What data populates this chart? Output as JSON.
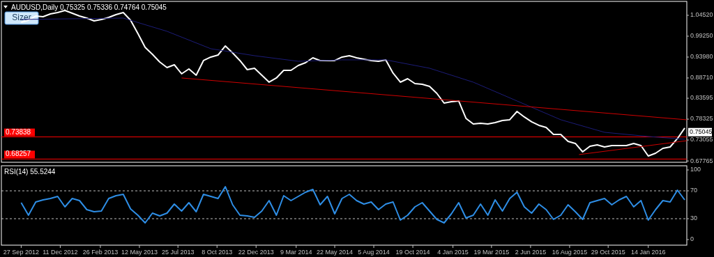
{
  "chart_data": [
    {
      "type": "line",
      "title": "AUDUSD,Daily 0.75325 0.75336 0.74764 0.75045",
      "annotations": [
        "Sizer",
        {
          "text": "0.75045",
          "y": 0.75045
        }
      ],
      "xlim": [
        "2012-08-20",
        "2016-03-28"
      ],
      "ylim": [
        0.6744,
        1.0803
      ],
      "yticks": [
        {
          "value": 1.0452,
          "label": "1.04520"
        },
        {
          "value": 0.9925,
          "label": "0.99250"
        },
        {
          "value": 0.9398,
          "label": "0.93980"
        },
        {
          "value": 0.8871,
          "label": "0.88710"
        },
        {
          "value": 0.83595,
          "label": "0.83595"
        },
        {
          "value": 0.78325,
          "label": "0.78325"
        },
        {
          "value": 0.73055,
          "label": "0.73055"
        },
        {
          "value": 0.67765,
          "label": "0.67765"
        }
      ],
      "tick_labels": "y",
      "grid": false,
      "marker": "none",
      "line_style": "solid",
      "x": [
        "2012-09-27",
        "2012-10-11",
        "2012-10-25",
        "2012-11-08",
        "2012-11-22",
        "2012-12-06",
        "2012-12-20",
        "2013-01-03",
        "2013-01-17",
        "2013-01-31",
        "2013-02-14",
        "2013-02-28",
        "2013-03-14",
        "2013-03-28",
        "2013-04-11",
        "2013-04-25",
        "2013-05-09",
        "2013-05-23",
        "2013-06-06",
        "2013-06-20",
        "2013-07-04",
        "2013-07-18",
        "2013-08-01",
        "2013-08-15",
        "2013-08-29",
        "2013-09-12",
        "2013-09-26",
        "2013-10-10",
        "2013-10-24",
        "2013-11-07",
        "2013-11-21",
        "2013-12-05",
        "2013-12-19",
        "2014-01-02",
        "2014-01-16",
        "2014-01-30",
        "2014-02-13",
        "2014-02-27",
        "2014-03-13",
        "2014-03-27",
        "2014-04-10",
        "2014-04-24",
        "2014-05-08",
        "2014-05-22",
        "2014-06-05",
        "2014-06-19",
        "2014-07-03",
        "2014-07-17",
        "2014-07-31",
        "2014-08-14",
        "2014-08-28",
        "2014-09-11",
        "2014-09-25",
        "2014-10-09",
        "2014-10-23",
        "2014-11-06",
        "2014-11-20",
        "2014-12-04",
        "2014-12-18",
        "2015-01-01",
        "2015-01-15",
        "2015-01-29",
        "2015-02-12",
        "2015-02-26",
        "2015-03-12",
        "2015-03-26",
        "2015-04-09",
        "2015-04-23",
        "2015-05-07",
        "2015-05-21",
        "2015-06-04",
        "2015-06-18",
        "2015-07-02",
        "2015-07-16",
        "2015-07-30",
        "2015-08-13",
        "2015-08-27",
        "2015-09-10",
        "2015-09-24",
        "2015-10-08",
        "2015-10-22",
        "2015-11-05",
        "2015-11-19",
        "2015-12-03",
        "2015-12-17",
        "2015-12-31",
        "2016-01-14",
        "2016-01-28",
        "2016-02-11",
        "2016-02-25",
        "2016-03-10",
        "2016-03-24"
      ],
      "series": [
        {
          "color": "#ffffff",
          "values": [
            1.0276,
            1.0329,
            1.0434,
            1.0417,
            1.0487,
            1.0522,
            1.0575,
            1.0505,
            1.0434,
            1.0382,
            1.0311,
            1.0347,
            1.0399,
            1.047,
            1.0522,
            1.0329,
            0.9995,
            0.9644,
            0.9468,
            0.9275,
            0.9134,
            0.9204,
            0.8976,
            0.9099,
            0.8941,
            0.931,
            0.9398,
            0.945,
            0.9679,
            0.9503,
            0.931,
            0.9081,
            0.9117,
            0.8941,
            0.8765,
            0.8871,
            0.9064,
            0.9064,
            0.9187,
            0.9257,
            0.938,
            0.931,
            0.931,
            0.931,
            0.9398,
            0.9433,
            0.938,
            0.9345,
            0.931,
            0.9292,
            0.9328,
            0.8994,
            0.8765,
            0.8853,
            0.873,
            0.8713,
            0.866,
            0.8484,
            0.8238,
            0.8273,
            0.8291,
            0.7852,
            0.7711,
            0.7729,
            0.7711,
            0.7746,
            0.7799,
            0.7817,
            0.8027,
            0.7887,
            0.7764,
            0.7676,
            0.7623,
            0.7448,
            0.7448,
            0.7272,
            0.7219,
            0.7008,
            0.7149,
            0.7184,
            0.7131,
            0.7166,
            0.7166,
            0.7166,
            0.7219,
            0.7166,
            0.6903,
            0.6973,
            0.7096,
            0.7131,
            0.7342,
            0.7606
          ]
        },
        {
          "color": "#1c1c78",
          "x": [
            "2012-09-27",
            "2013-04-11",
            "2013-07-04",
            "2013-09-26",
            "2013-12-19",
            "2014-03-13",
            "2014-06-05",
            "2014-08-28",
            "2014-11-20",
            "2015-02-12",
            "2015-05-07",
            "2015-07-30",
            "2015-10-22",
            "2016-01-14",
            "2016-03-24"
          ],
          "values": [
            1.0347,
            1.0382,
            1.0048,
            0.9609,
            0.9433,
            0.9292,
            0.9328,
            0.9328,
            0.9117,
            0.8765,
            0.8291,
            0.7817,
            0.75,
            0.7395,
            0.7325
          ]
        },
        {
          "color": "#d00000",
          "x": [
            "2013-08-01",
            "2016-03-28"
          ],
          "values": [
            0.8871,
            0.7816
          ]
        },
        {
          "color": "#d00000",
          "x": [
            "2015-09-03",
            "2016-03-28"
          ],
          "values": [
            0.6938,
            0.7289
          ]
        }
      ],
      "ref_lines": [
        {
          "axis": "y",
          "value": 0.73838,
          "label": "0.73838",
          "color": "#ff0000"
        },
        {
          "axis": "y",
          "value": 0.68257,
          "label": "0.68257",
          "color": "#ff0000"
        }
      ]
    },
    {
      "type": "line",
      "title": "RSI(14) 55.5244",
      "xlim": [
        "2012-08-20",
        "2016-03-28"
      ],
      "xticks": [
        {
          "value": "2012-09-27",
          "label": "27 Sep 2012"
        },
        {
          "value": "2012-12-11",
          "label": "11 Dec 2012"
        },
        {
          "value": "2013-02-26",
          "label": "26 Feb 2013"
        },
        {
          "value": "2013-05-12",
          "label": "12 May 2013"
        },
        {
          "value": "2013-07-25",
          "label": "25 Jul 2013"
        },
        {
          "value": "2013-10-08",
          "label": "8 Oct 2013"
        },
        {
          "value": "2013-12-22",
          "label": "22 Dec 2013"
        },
        {
          "value": "2014-03-09",
          "label": "9 Mar 2014"
        },
        {
          "value": "2014-05-22",
          "label": "22 May 2014"
        },
        {
          "value": "2014-08-05",
          "label": "5 Aug 2014"
        },
        {
          "value": "2014-10-19",
          "label": "19 Oct 2014"
        },
        {
          "value": "2015-01-04",
          "label": "4 Jan 2015"
        },
        {
          "value": "2015-03-19",
          "label": "19 Mar 2015"
        },
        {
          "value": "2015-06-02",
          "label": "2 Jun 2015"
        },
        {
          "value": "2015-08-16",
          "label": "16 Aug 2015"
        },
        {
          "value": "2015-10-29",
          "label": "29 Oct 2015"
        },
        {
          "value": "2016-01-14",
          "label": "14 Jan 2016"
        }
      ],
      "ylim": [
        -8,
        106
      ],
      "yticks": [
        0,
        30,
        70,
        100
      ],
      "grid": false,
      "marker": "none",
      "line_style": "solid",
      "x": [
        "2012-09-27",
        "2012-10-11",
        "2012-10-25",
        "2012-11-08",
        "2012-11-22",
        "2012-12-06",
        "2012-12-20",
        "2013-01-03",
        "2013-01-17",
        "2013-01-31",
        "2013-02-14",
        "2013-02-28",
        "2013-03-14",
        "2013-03-28",
        "2013-04-11",
        "2013-04-25",
        "2013-05-09",
        "2013-05-23",
        "2013-06-06",
        "2013-06-20",
        "2013-07-04",
        "2013-07-18",
        "2013-08-01",
        "2013-08-15",
        "2013-08-29",
        "2013-09-12",
        "2013-09-26",
        "2013-10-10",
        "2013-10-24",
        "2013-11-07",
        "2013-11-21",
        "2013-12-05",
        "2013-12-19",
        "2014-01-02",
        "2014-01-16",
        "2014-01-30",
        "2014-02-13",
        "2014-02-27",
        "2014-03-13",
        "2014-03-27",
        "2014-04-10",
        "2014-04-24",
        "2014-05-08",
        "2014-05-22",
        "2014-06-05",
        "2014-06-19",
        "2014-07-03",
        "2014-07-17",
        "2014-07-31",
        "2014-08-14",
        "2014-08-28",
        "2014-09-11",
        "2014-09-25",
        "2014-10-09",
        "2014-10-23",
        "2014-11-06",
        "2014-11-20",
        "2014-12-04",
        "2014-12-18",
        "2015-01-01",
        "2015-01-15",
        "2015-01-29",
        "2015-02-12",
        "2015-02-26",
        "2015-03-12",
        "2015-03-26",
        "2015-04-09",
        "2015-04-23",
        "2015-05-07",
        "2015-05-21",
        "2015-06-04",
        "2015-06-18",
        "2015-07-02",
        "2015-07-16",
        "2015-07-30",
        "2015-08-13",
        "2015-08-27",
        "2015-09-10",
        "2015-09-24",
        "2015-10-08",
        "2015-10-22",
        "2015-11-05",
        "2015-11-19",
        "2015-12-03",
        "2015-12-17",
        "2015-12-31",
        "2016-01-14",
        "2016-01-28",
        "2016-02-11",
        "2016-02-25",
        "2016-03-10",
        "2016-03-24"
      ],
      "series": [
        {
          "color": "#2e8ee6",
          "values": [
            53,
            35,
            54,
            57,
            59,
            62,
            47,
            59,
            56,
            43,
            40,
            41,
            59,
            63,
            65,
            44,
            35,
            24,
            38,
            34,
            38,
            51,
            41,
            53,
            40,
            65,
            62,
            59,
            76,
            50,
            35,
            34,
            32,
            41,
            56,
            35,
            63,
            56,
            62,
            68,
            72,
            50,
            62,
            37,
            59,
            65,
            56,
            51,
            54,
            43,
            51,
            54,
            28,
            35,
            47,
            53,
            41,
            29,
            24,
            37,
            53,
            31,
            35,
            51,
            35,
            57,
            41,
            59,
            68,
            47,
            38,
            51,
            43,
            29,
            35,
            50,
            40,
            29,
            53,
            56,
            59,
            50,
            57,
            62,
            47,
            56,
            28,
            43,
            56,
            54,
            71,
            57
          ]
        }
      ],
      "ref_lines": [
        {
          "axis": "y",
          "value": 70,
          "color": "#c0c0c0",
          "line_style": "dashed"
        },
        {
          "axis": "y",
          "value": 30,
          "color": "#c0c0c0",
          "line_style": "dashed"
        }
      ]
    }
  ]
}
